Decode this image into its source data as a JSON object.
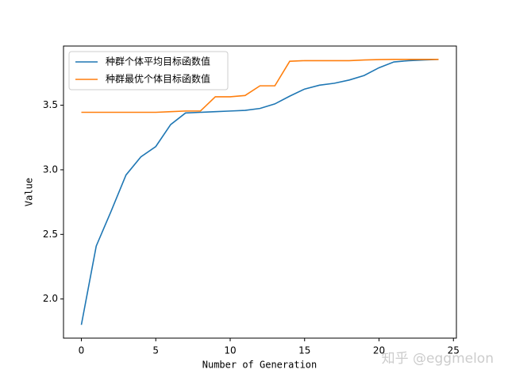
{
  "chart_data": {
    "type": "line",
    "xlabel": "Number of Generation",
    "ylabel": "Value",
    "x": [
      0,
      1,
      2,
      3,
      4,
      5,
      6,
      7,
      8,
      9,
      10,
      11,
      12,
      13,
      14,
      15,
      16,
      17,
      18,
      19,
      20,
      21,
      22,
      23,
      24
    ],
    "series": [
      {
        "name": "种群个体平均目标函数值",
        "color": "#1f77b4",
        "values": [
          1.8,
          2.41,
          2.68,
          2.96,
          3.1,
          3.18,
          3.35,
          3.44,
          3.445,
          3.45,
          3.455,
          3.46,
          3.475,
          3.51,
          3.57,
          3.625,
          3.655,
          3.67,
          3.695,
          3.73,
          3.79,
          3.835,
          3.845,
          3.85,
          3.855
        ]
      },
      {
        "name": "种群最优个体目标函数值",
        "color": "#ff7f0e",
        "values": [
          3.445,
          3.445,
          3.445,
          3.445,
          3.445,
          3.445,
          3.45,
          3.455,
          3.455,
          3.565,
          3.565,
          3.575,
          3.65,
          3.65,
          3.84,
          3.845,
          3.845,
          3.845,
          3.845,
          3.85,
          3.853,
          3.855,
          3.855,
          3.855,
          3.855
        ]
      }
    ],
    "xlim": [
      -1.2,
      25.2
    ],
    "xticks": [
      0,
      5,
      10,
      15,
      20,
      25
    ],
    "ylim": [
      1.697,
      3.958
    ],
    "yticks": [
      {
        "value": 2,
        "label": "2.0"
      },
      2.5,
      {
        "value": 3,
        "label": "3.0"
      },
      3.5
    ],
    "grid": false,
    "legend": "upper-left",
    "watermark": "知乎 @eggmelon"
  }
}
